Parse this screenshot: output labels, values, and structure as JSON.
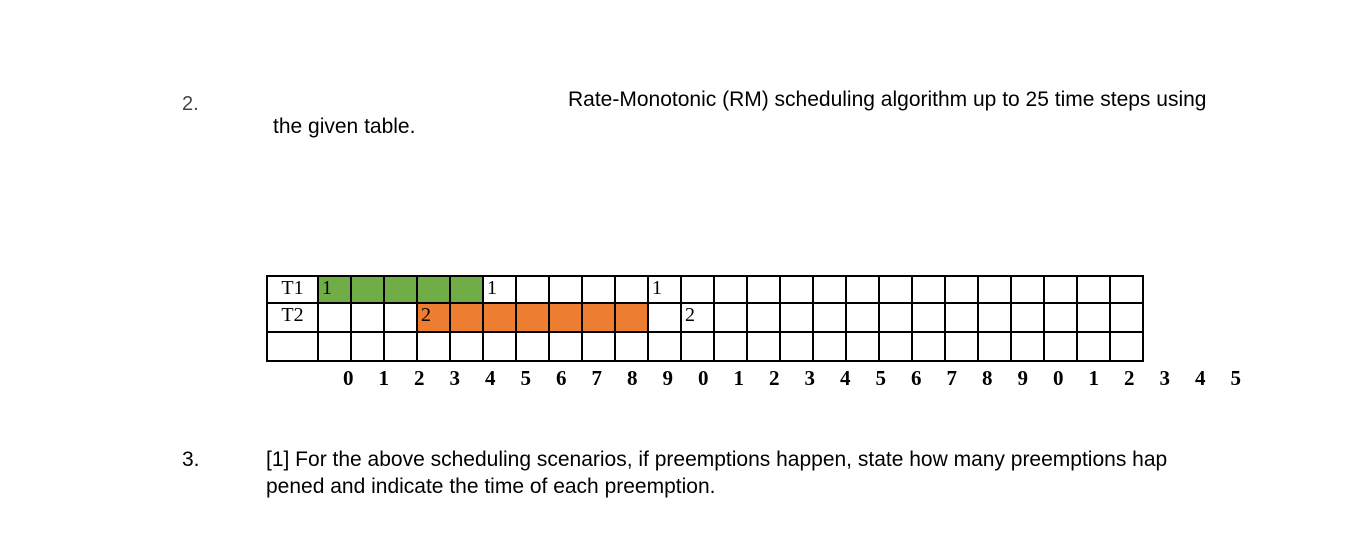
{
  "question2": {
    "number": "2.",
    "line1": "Rate-Monotonic (RM) scheduling algorithm up to 25 time steps using",
    "line2": "the given table."
  },
  "schedule_table": {
    "rows": [
      {
        "label": "T1",
        "cells": [
          "1",
          "",
          "",
          "",
          "",
          "1",
          "",
          "",
          "",
          "",
          "1",
          "",
          "",
          "",
          "",
          "",
          "",
          "",
          "",
          "",
          "",
          "",
          "",
          "",
          ""
        ],
        "fill": [
          "#70ad47",
          "#70ad47",
          "#70ad47",
          "#70ad47",
          "#70ad47",
          "",
          "",
          "",
          "",
          "",
          "",
          "",
          "",
          "",
          "",
          "",
          "",
          "",
          "",
          "",
          "",
          "",
          "",
          "",
          ""
        ]
      },
      {
        "label": "T2",
        "cells": [
          "",
          "",
          "",
          "2",
          "",
          "",
          "",
          "",
          "",
          "",
          "",
          "2",
          "",
          "",
          "",
          "",
          "",
          "",
          "",
          "",
          "",
          "",
          "",
          "",
          ""
        ],
        "fill": [
          "",
          "",
          "",
          "#ed7d31",
          "#ed7d31",
          "#ed7d31",
          "#ed7d31",
          "#ed7d31",
          "#ed7d31",
          "#ed7d31",
          "",
          "",
          "",
          "",
          "",
          "",
          "",
          "",
          "",
          "",
          "",
          "",
          "",
          "",
          ""
        ]
      },
      {
        "label": "",
        "cells": [
          "",
          "",
          "",
          "",
          "",
          "",
          "",
          "",
          "",
          "",
          "",
          "",
          "",
          "",
          "",
          "",
          "",
          "",
          "",
          "",
          "",
          "",
          "",
          "",
          ""
        ],
        "fill": [
          "",
          "",
          "",
          "",
          "",
          "",
          "",
          "",
          "",
          "",
          "",
          "",
          "",
          "",
          "",
          "",
          "",
          "",
          "",
          "",
          "",
          "",
          "",
          "",
          ""
        ]
      }
    ],
    "tick_labels": [
      "0",
      "1",
      "2",
      "3",
      "4",
      "5",
      "6",
      "7",
      "8",
      "9",
      "0",
      "1",
      "2",
      "3",
      "4",
      "5",
      "6",
      "7",
      "8",
      "9",
      "0",
      "1",
      "2",
      "3",
      "4",
      "5"
    ]
  },
  "question3": {
    "number": "3.",
    "line1": "[1] For the above scheduling scenarios, if preemptions happen, state how many preemptions hap",
    "line2": "pened and indicate the time of each preemption."
  }
}
